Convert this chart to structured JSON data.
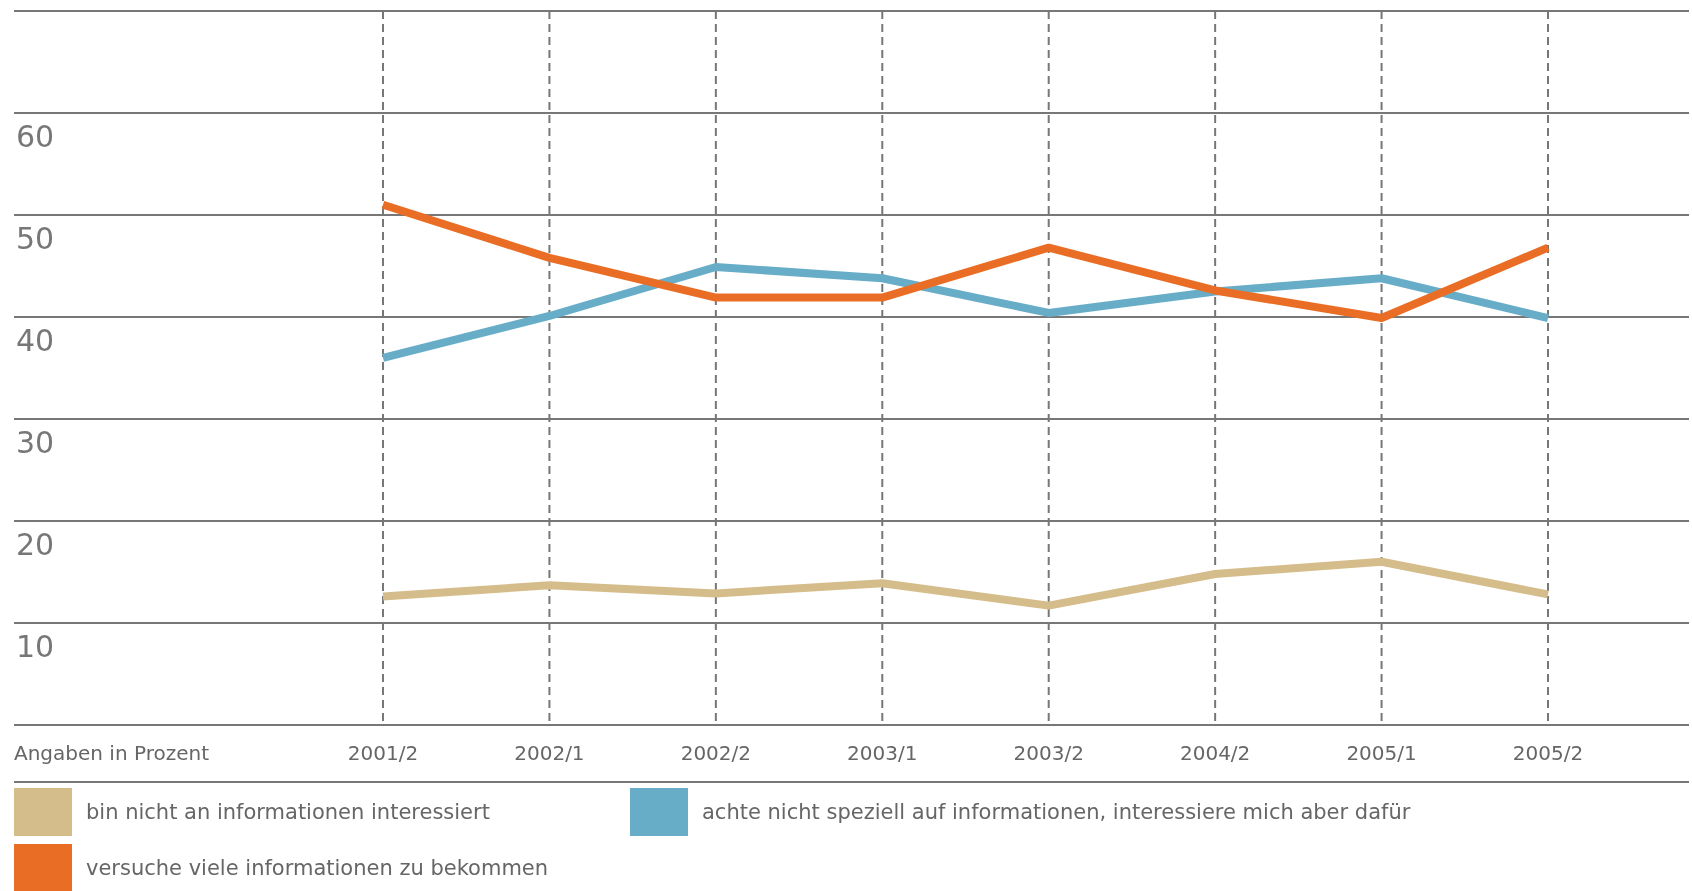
{
  "chart_data": {
    "type": "line",
    "ylabel": "Angaben in Prozent",
    "categories": [
      "2001/2",
      "2002/1",
      "2002/2",
      "2003/1",
      "2003/2",
      "2004/2",
      "2005/1",
      "2005/2"
    ],
    "series": [
      {
        "name": "bin nicht an informationen interessiert",
        "color": "#d5bd8b",
        "values": [
          12.6,
          13.7,
          12.9,
          13.9,
          11.7,
          14.8,
          16,
          12.8
        ]
      },
      {
        "name": "achte nicht speziell auf informationen, interessiere mich aber dafür",
        "color": "#68adc8",
        "values": [
          36,
          40.1,
          44.9,
          43.8,
          40.4,
          42.5,
          43.8,
          39.9
        ]
      },
      {
        "name": "versuche viele informationen zu bekommen",
        "color": "#ea6d25",
        "values": [
          51,
          45.8,
          41.9,
          41.9,
          46.8,
          42.6,
          39.9,
          46.8
        ]
      }
    ],
    "ylim": [
      0,
      70
    ],
    "yticks": [
      {
        "value": 0,
        "label": null
      },
      10,
      20,
      30,
      40,
      50,
      60,
      {
        "value": 70,
        "label": null
      }
    ],
    "grid": true,
    "legend": "bottom",
    "marker": "none",
    "line_style": "solid"
  }
}
